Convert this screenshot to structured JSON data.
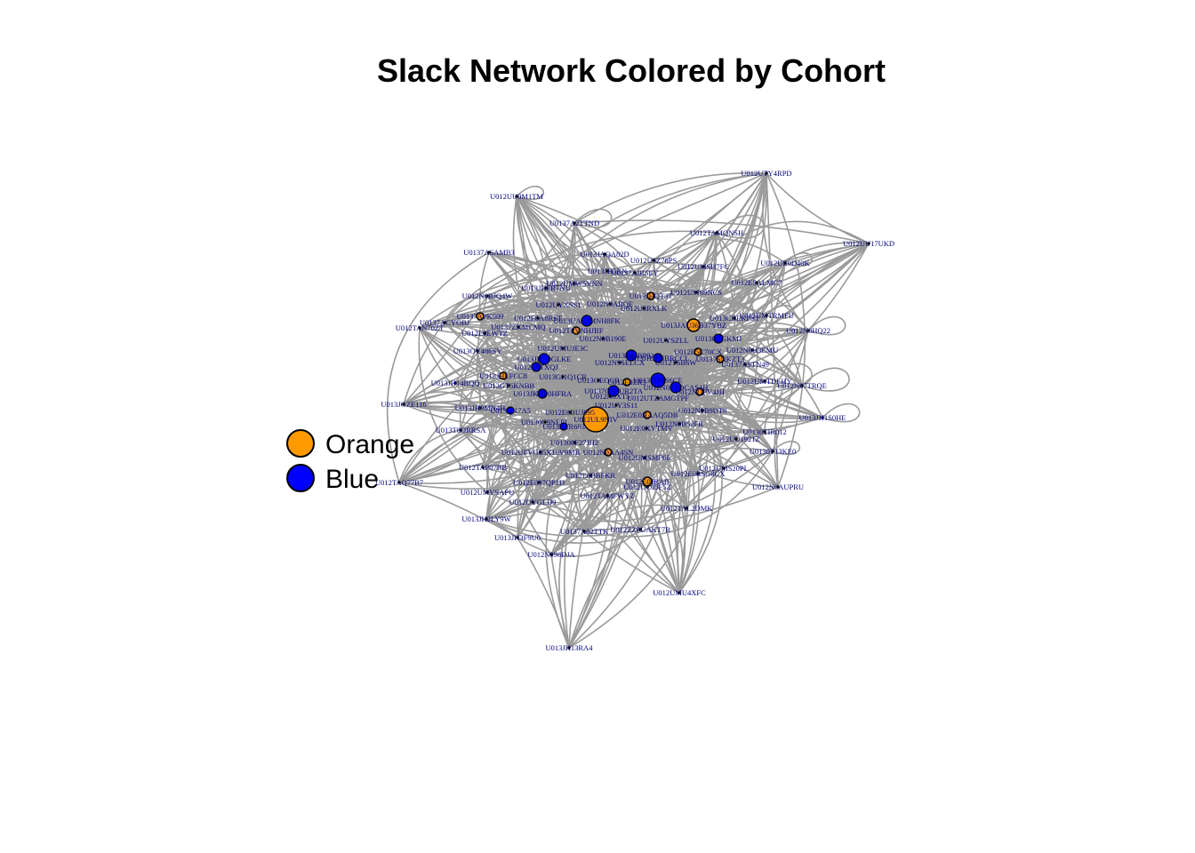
{
  "title": "Slack Network Colored by Cohort",
  "legend": [
    {
      "label": "Orange",
      "color": "#ff9900"
    },
    {
      "label": "Blue",
      "color": "#0000ff"
    }
  ],
  "colors": {
    "edge": "#9a9a9a",
    "label": "#000080",
    "node_stroke": "#000000",
    "small_node": "#111111"
  },
  "nodes": [
    "U012UTY4RPD",
    "U012UU0M1TM",
    "U0137A2TTND",
    "U012TAMQNSH",
    "U012UU17UKD",
    "U0137ASAMB3",
    "U013JAQA82D",
    "U012U3Z76PS",
    "U012UE0D40K",
    "U012UMSH7FC",
    "U013JH5RN",
    "U0137AIR5EY",
    "U012UMW5YNN",
    "U012E5ALMC7",
    "U013JHFRTNU",
    "U012UMS9NCS",
    "U012N0BJQ4W",
    "U013JHQT3T",
    "U012UYXSS1",
    "U012N9ARQE",
    "U012U3RXLK",
    "U0137APK909",
    "U012E0A8RST",
    "U013UAF2MNH8FK",
    "U013JAU36B37YBZ",
    "U013CBEKPST",
    "U012UMTRMFU",
    "U012TAN70ZT",
    "U0137ACYOBJ",
    "U0137ZKMCMQ",
    "U012TPVNHJBF",
    "U012N0HQ22",
    "U012E0EWTZ",
    "U012N0B190E",
    "U012UYSZLL",
    "U0130UGKMJ",
    "U013OY486SY",
    "U012UMUJE3C",
    "U012E5C70CX",
    "U012N0H3EMU",
    "U013JHC9GLKE",
    "U012N9SELCX",
    "U012TSB6W",
    "U0137ASTN49",
    "U012E0TXQJ",
    "U013JH4BP92",
    "U013JHJPNBRCCL",
    "U0137SNKZT3",
    "U013JHLFCC8",
    "U013GI1Q1CR",
    "U013GEOGR",
    "U012E0ZR3",
    "U0137DNS6CE",
    "U012UMTDLHY",
    "U013JH14RQQ",
    "U013GT5KNBB",
    "U012N07TRQE",
    "U012N0ZZOCAS4H",
    "U0137G9BUR2TA",
    "U012NQPV4JH",
    "U013JGZE116",
    "U013JKHP0HFRA",
    "U012N0XT5",
    "U012UTZAMGTPF",
    "U012UY3S11",
    "U012N0B9DT8",
    "U013JH1S0HE",
    "U013JH9MN4H",
    "U013QK7A5",
    "U012E0BUJ095",
    "U012UL9NIV",
    "U012E0HAAQ5DB",
    "U0130C9NEPL",
    "U0133AR603",
    "U012N0B52FR",
    "U012E0XYTMV",
    "U0130TIR012",
    "U012UU1921Z",
    "U013T8ORRSA",
    "U01300F27JH2",
    "U012N0AA4SN",
    "U012UFVG05X10V9MB",
    "U012UMSMP6E",
    "U0130T13KE0",
    "U012TAP07RB",
    "U012UMS20PL",
    "U012E0BBFKR",
    "U012E0RSG8CX",
    "U012E097QP1D",
    "U012N0AUPRU",
    "U012TAQ77B7",
    "U012E0JRAB",
    "U012UC00F5Z",
    "U012UMVSAPU",
    "U012TAMFWYZ",
    "U012UYGLD9",
    "U012TAL2DMK",
    "U013JH2LY9W",
    "U0137A82TTK",
    "U012ZZPUAKT7B",
    "U013JH3F9U0",
    "U012N098DJA",
    "U012UMU4XFC",
    "U013JH13RA4"
  ]
}
